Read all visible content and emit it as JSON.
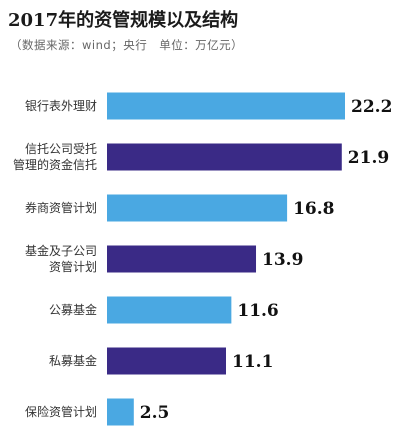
{
  "chart_data": {
    "type": "bar",
    "orientation": "horizontal",
    "title": "2017年的资管规模以及结构",
    "subtitle": "（数据来源：wind；央行　单位：万亿元）",
    "categories": [
      "银行表外理财",
      "信托公司受托\n管理的资金信托",
      "券商资管计划",
      "基金及子公司\n资管计划",
      "公募基金",
      "私募基金",
      "保险资管计划"
    ],
    "values": [
      22.2,
      21.9,
      16.8,
      13.9,
      11.6,
      11.1,
      2.5
    ],
    "value_labels": [
      "22.2",
      "21.9",
      "16.8",
      "13.9",
      "11.6",
      "11.1",
      "2.5"
    ],
    "bar_colors": [
      "#4aa8e2",
      "#3a2a86",
      "#4aa8e2",
      "#3a2a86",
      "#4aa8e2",
      "#3a2a86",
      "#4aa8e2"
    ],
    "xlim": [
      0,
      22.2
    ],
    "grid": false,
    "legend": "none"
  }
}
